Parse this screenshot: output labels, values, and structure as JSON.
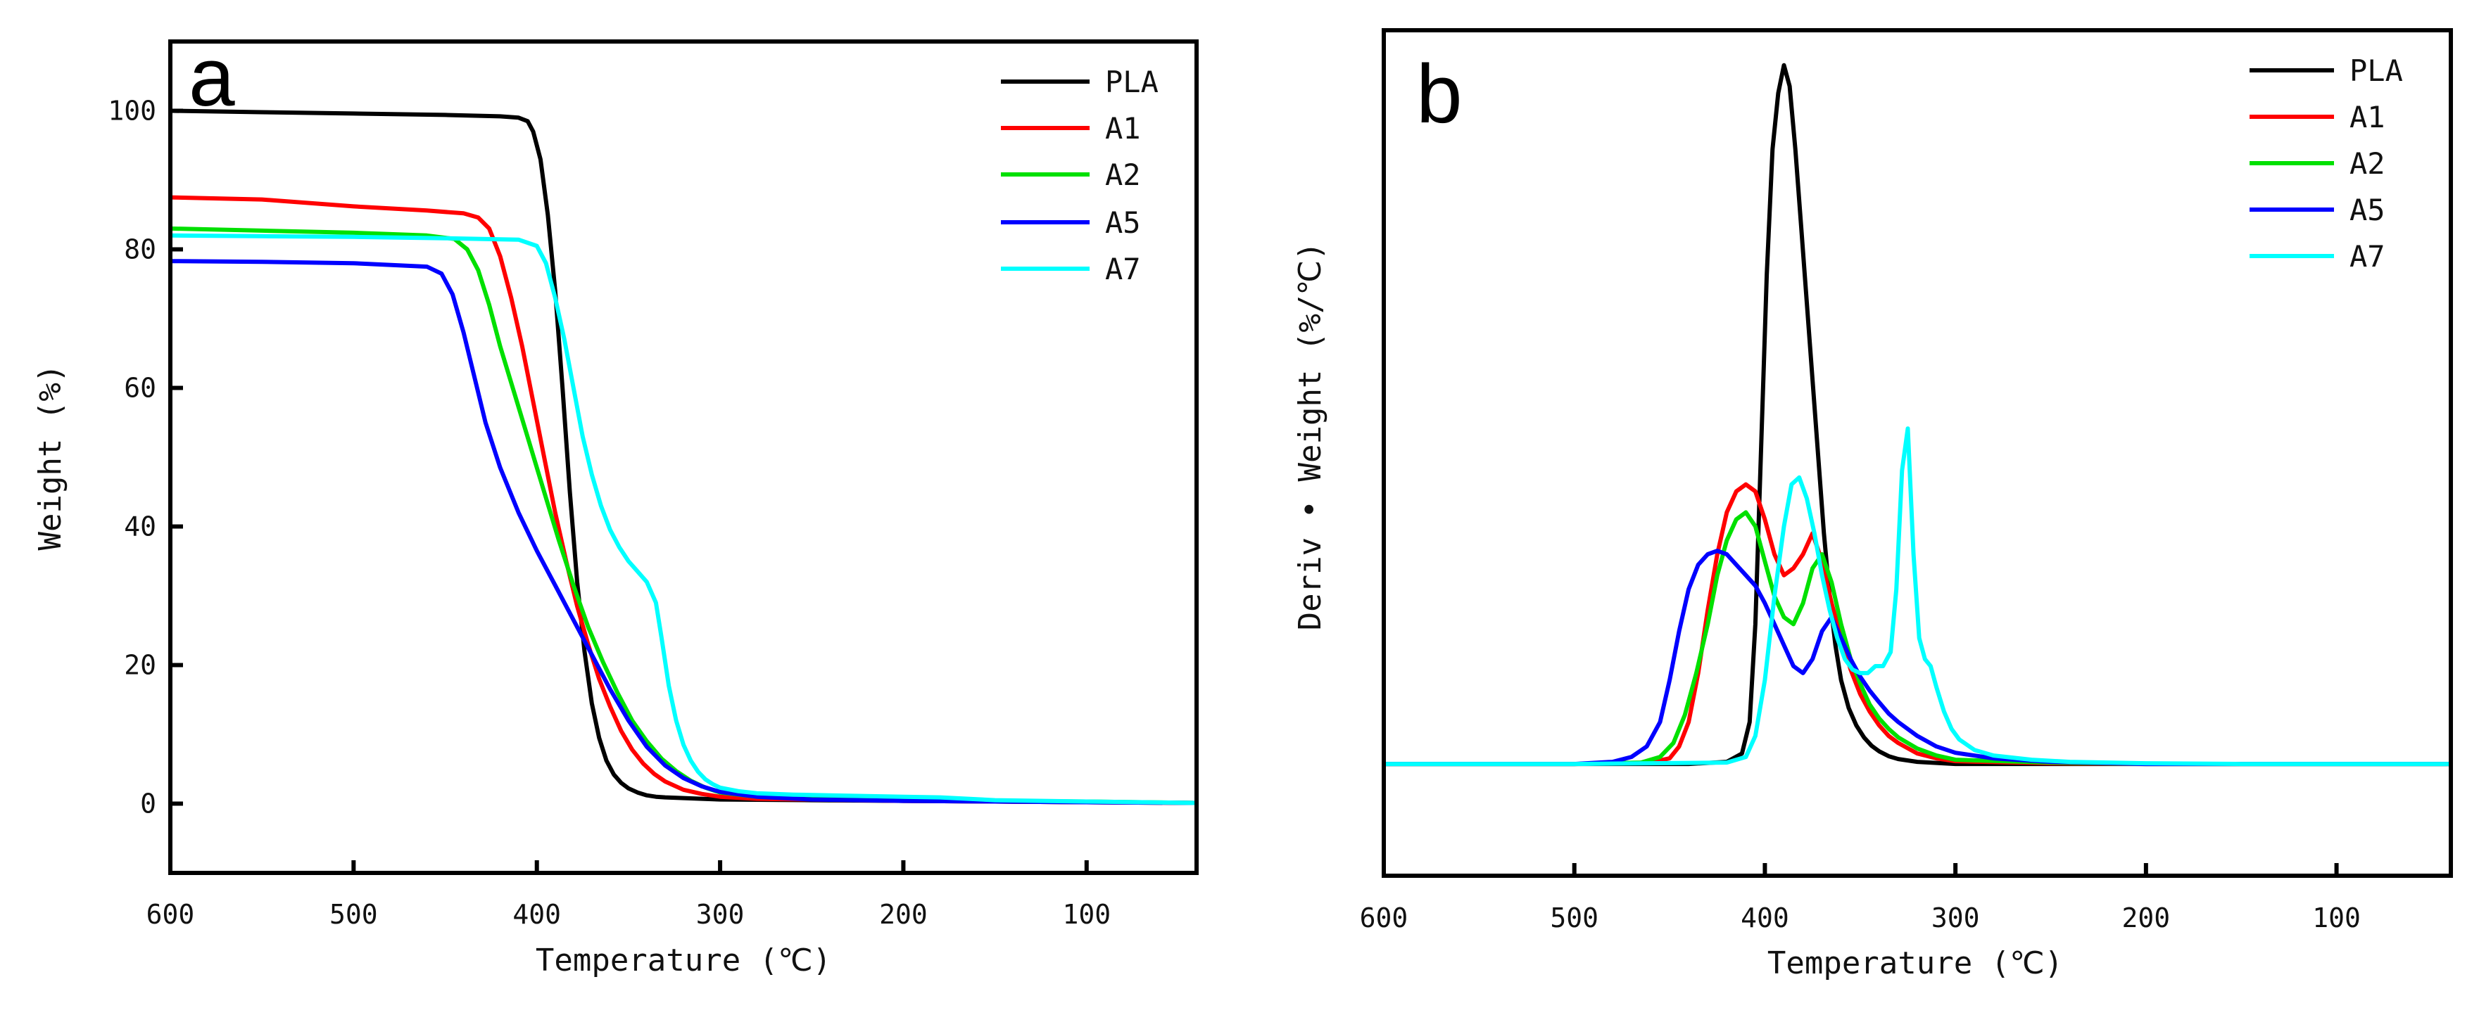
{
  "chart_data": [
    {
      "panel": "a",
      "type": "line",
      "xlabel": "Temperature (℃)",
      "ylabel": "Weight (%)",
      "xlim": [
        600,
        40
      ],
      "ylim": [
        -10,
        110
      ],
      "xticks": [
        600,
        500,
        400,
        300,
        200,
        100
      ],
      "yticks": [
        0,
        20,
        40,
        60,
        80,
        100
      ],
      "legend_position": "top-right",
      "series": [
        {
          "name": "PLA",
          "color": "#000000",
          "x": [
            600,
            550,
            500,
            450,
            420,
            410,
            405,
            402,
            398,
            394,
            390,
            386,
            382,
            378,
            374,
            370,
            366,
            362,
            358,
            354,
            350,
            345,
            340,
            335,
            330,
            320,
            310,
            300,
            250,
            200,
            150,
            100,
            40
          ],
          "y": [
            100,
            99.8,
            99.6,
            99.4,
            99.2,
            99.0,
            98.5,
            97.0,
            93.0,
            85.0,
            74.0,
            60.0,
            45.0,
            32.0,
            22.0,
            14.5,
            9.5,
            6.2,
            4.2,
            3.0,
            2.2,
            1.6,
            1.2,
            1.0,
            0.9,
            0.8,
            0.7,
            0.6,
            0.5,
            0.4,
            0.3,
            0.2,
            0.1
          ]
        },
        {
          "name": "A1",
          "color": "#ff0000",
          "x": [
            600,
            550,
            500,
            460,
            440,
            432,
            426,
            420,
            414,
            408,
            402,
            396,
            390,
            384,
            378,
            372,
            366,
            360,
            354,
            348,
            342,
            336,
            330,
            320,
            310,
            300,
            280,
            250,
            200,
            150,
            100,
            40
          ],
          "y": [
            87.5,
            87.2,
            86.2,
            85.6,
            85.2,
            84.6,
            83.0,
            79.0,
            73.0,
            66.0,
            58.0,
            50.0,
            42.0,
            35.0,
            28.5,
            23.0,
            18.0,
            14.0,
            10.5,
            7.8,
            5.8,
            4.3,
            3.2,
            2.0,
            1.4,
            1.0,
            0.7,
            0.6,
            0.4,
            0.3,
            0.2,
            0.1
          ]
        },
        {
          "name": "A2",
          "color": "#00e000",
          "x": [
            600,
            550,
            500,
            460,
            445,
            438,
            432,
            426,
            420,
            412,
            404,
            396,
            388,
            380,
            372,
            364,
            356,
            348,
            340,
            332,
            324,
            316,
            308,
            300,
            280,
            250,
            200,
            150,
            100,
            40
          ],
          "y": [
            83.0,
            82.7,
            82.4,
            82.0,
            81.5,
            80.0,
            77.0,
            72.0,
            66.0,
            59.0,
            52.0,
            45.0,
            38.0,
            31.5,
            25.5,
            20.5,
            16.0,
            12.0,
            9.0,
            6.5,
            4.7,
            3.3,
            2.3,
            1.6,
            1.0,
            0.7,
            0.5,
            0.4,
            0.3,
            0.1
          ]
        },
        {
          "name": "A5",
          "color": "#0000ff",
          "x": [
            600,
            550,
            500,
            460,
            452,
            446,
            440,
            434,
            428,
            420,
            410,
            400,
            390,
            380,
            370,
            360,
            350,
            340,
            330,
            320,
            310,
            300,
            280,
            250,
            200,
            150,
            100,
            40
          ],
          "y": [
            78.3,
            78.2,
            78.0,
            77.5,
            76.5,
            73.5,
            68.0,
            61.5,
            55.0,
            48.5,
            42.0,
            36.5,
            31.5,
            26.5,
            21.5,
            16.5,
            12.0,
            8.2,
            5.5,
            3.7,
            2.5,
            1.7,
            1.0,
            0.6,
            0.4,
            0.3,
            0.2,
            0.1
          ]
        },
        {
          "name": "A7",
          "color": "#00ffff",
          "x": [
            600,
            550,
            500,
            450,
            410,
            400,
            395,
            390,
            385,
            380,
            375,
            370,
            365,
            360,
            355,
            350,
            345,
            340,
            335,
            332,
            328,
            324,
            320,
            316,
            312,
            308,
            304,
            300,
            290,
            280,
            260,
            240,
            200,
            180,
            150,
            100,
            40
          ],
          "y": [
            82.0,
            81.9,
            81.8,
            81.6,
            81.4,
            80.5,
            78.0,
            73.0,
            67.0,
            60.0,
            53.0,
            47.5,
            43.0,
            39.5,
            37.0,
            35.0,
            33.5,
            32.0,
            29.0,
            24.0,
            17.0,
            12.0,
            8.5,
            6.2,
            4.6,
            3.5,
            2.8,
            2.3,
            1.8,
            1.5,
            1.3,
            1.2,
            1.0,
            0.9,
            0.5,
            0.3,
            0.1
          ]
        }
      ]
    },
    {
      "panel": "b",
      "type": "line",
      "xlabel": "Temperature (℃)",
      "ylabel": "Deriv • Weight (%/℃)",
      "xlim": [
        600,
        40
      ],
      "ylim": [
        -16,
        105
      ],
      "xticks": [
        600,
        500,
        400,
        300,
        200,
        100
      ],
      "yticks": [],
      "legend_position": "top-right",
      "series": [
        {
          "name": "PLA",
          "color": "#000000",
          "x": [
            600,
            500,
            440,
            420,
            412,
            408,
            405,
            402,
            399,
            396,
            393,
            390,
            387,
            384,
            381,
            378,
            375,
            372,
            369,
            366,
            363,
            360,
            356,
            352,
            348,
            344,
            340,
            335,
            330,
            320,
            300,
            200,
            100,
            40
          ],
          "y": [
            0,
            0,
            0,
            0.3,
            1.5,
            6,
            20,
            45,
            70,
            88,
            96,
            100,
            97,
            88,
            77,
            66,
            55,
            44,
            33,
            24,
            17,
            12,
            8,
            5.5,
            3.8,
            2.6,
            1.8,
            1.1,
            0.7,
            0.3,
            0,
            0,
            0,
            0
          ]
        },
        {
          "name": "A1",
          "color": "#ff0000",
          "x": [
            600,
            500,
            460,
            450,
            445,
            440,
            435,
            430,
            425,
            420,
            415,
            410,
            405,
            400,
            395,
            390,
            385,
            380,
            375,
            370,
            365,
            360,
            355,
            350,
            345,
            340,
            335,
            330,
            320,
            310,
            300,
            250,
            200,
            150,
            100,
            40
          ],
          "y": [
            0,
            0,
            0.2,
            0.8,
            2.5,
            6,
            13,
            22,
            30,
            36,
            39,
            40,
            39,
            35,
            30,
            27,
            28,
            30,
            33,
            29,
            23,
            18,
            13.5,
            10,
            7.5,
            5.5,
            4,
            3,
            1.5,
            0.8,
            0.4,
            0.1,
            0,
            0,
            0,
            0
          ]
        },
        {
          "name": "A2",
          "color": "#00e000",
          "x": [
            600,
            500,
            465,
            455,
            448,
            442,
            436,
            430,
            425,
            420,
            415,
            410,
            405,
            400,
            395,
            390,
            385,
            380,
            375,
            370,
            365,
            360,
            355,
            350,
            345,
            340,
            335,
            330,
            320,
            310,
            300,
            250,
            200,
            150,
            100,
            40
          ],
          "y": [
            0,
            0,
            0.2,
            1,
            3,
            7,
            13,
            20,
            27,
            32,
            35,
            36,
            34,
            29,
            24,
            21,
            20,
            23,
            28,
            30,
            26,
            20,
            15,
            11.5,
            8.5,
            6.5,
            5,
            3.8,
            2.2,
            1.2,
            0.6,
            0.2,
            0,
            0,
            0,
            0
          ]
        },
        {
          "name": "A5",
          "color": "#0000ff",
          "x": [
            600,
            500,
            480,
            470,
            462,
            455,
            450,
            445,
            440,
            435,
            430,
            425,
            420,
            415,
            410,
            405,
            400,
            395,
            390,
            385,
            380,
            375,
            370,
            365,
            360,
            355,
            350,
            345,
            340,
            335,
            330,
            320,
            310,
            300,
            280,
            250,
            200,
            150,
            100,
            40
          ],
          "y": [
            0,
            0,
            0.3,
            1,
            2.5,
            6,
            12,
            19,
            25,
            28.5,
            30,
            30.5,
            30,
            28.5,
            27,
            25.5,
            23,
            20,
            17,
            14,
            13,
            15,
            19,
            21,
            18,
            15,
            12.5,
            10.5,
            8.8,
            7.2,
            6,
            4,
            2.5,
            1.6,
            0.8,
            0.3,
            0,
            0,
            0,
            0
          ]
        },
        {
          "name": "A7",
          "color": "#00ffff",
          "x": [
            600,
            500,
            420,
            410,
            405,
            400,
            395,
            390,
            386,
            382,
            378,
            374,
            370,
            366,
            362,
            358,
            354,
            350,
            346,
            342,
            338,
            334,
            331,
            328,
            325,
            322,
            319,
            316,
            313,
            310,
            306,
            302,
            298,
            290,
            280,
            260,
            240,
            200,
            150,
            100,
            40
          ],
          "y": [
            0,
            0,
            0.2,
            1,
            4,
            12,
            24,
            34,
            40,
            41,
            38,
            33,
            27,
            22,
            18,
            15,
            13.5,
            13,
            13,
            14,
            14,
            16,
            25,
            42,
            48,
            30,
            18,
            15,
            14,
            11,
            7.5,
            5,
            3.5,
            2,
            1.2,
            0.6,
            0.3,
            0.1,
            0,
            0,
            0
          ]
        }
      ]
    }
  ]
}
